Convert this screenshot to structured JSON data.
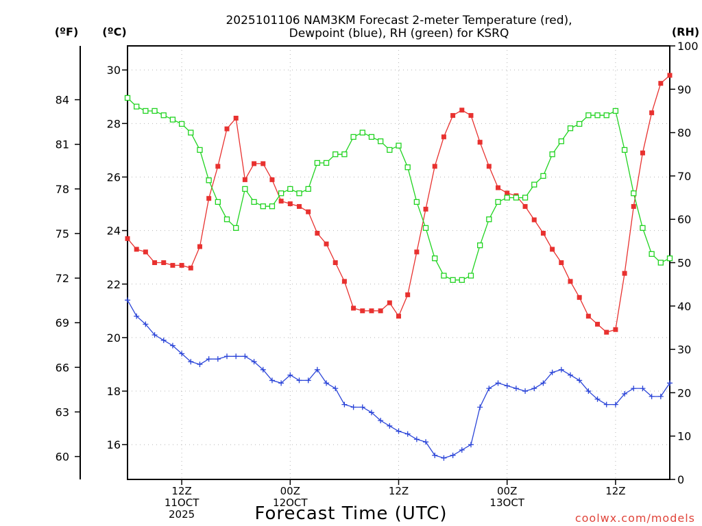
{
  "chart_data": {
    "type": "line",
    "title_line1": "2025101106 NAM3KM Forecast 2-meter Temperature (red),",
    "title_line2": "Dewpoint (blue), RH (green) for KSRQ",
    "unit_f": "(ºF)",
    "unit_c": "(ºC)",
    "unit_rh": "(RH)",
    "xlabel": "Forecast Time (UTC)",
    "credit": "coolwx.com/models",
    "x_range_hours": [
      0,
      60
    ],
    "y_left_c": {
      "range": [
        14.7,
        30.9
      ],
      "ticks": [
        16,
        18,
        20,
        22,
        24,
        26,
        28,
        30
      ]
    },
    "y_left_f": {
      "ticks": [
        60,
        63,
        66,
        69,
        72,
        75,
        78,
        81,
        84
      ]
    },
    "y_right_rh": {
      "range": [
        0,
        100
      ],
      "ticks": [
        0,
        10,
        20,
        30,
        40,
        50,
        60,
        70,
        80,
        90,
        100
      ]
    },
    "x_ticks": [
      {
        "hour": 6,
        "lines": [
          "12Z",
          "11OCT",
          "2025"
        ]
      },
      {
        "hour": 18,
        "lines": [
          "00Z",
          "12OCT"
        ]
      },
      {
        "hour": 30,
        "lines": [
          "12Z"
        ]
      },
      {
        "hour": 42,
        "lines": [
          "00Z",
          "13OCT"
        ]
      },
      {
        "hour": 54,
        "lines": [
          "12Z"
        ]
      }
    ],
    "series": [
      {
        "name": "Temperature (°C)",
        "color": "#e8312f",
        "marker": "filled-square",
        "axis": "celsius",
        "values": [
          23.7,
          23.3,
          23.2,
          22.8,
          22.8,
          22.7,
          22.7,
          22.6,
          23.4,
          25.2,
          26.4,
          27.8,
          28.2,
          25.9,
          26.5,
          26.5,
          25.9,
          25.1,
          25.0,
          24.9,
          24.7,
          23.9,
          23.5,
          22.8,
          22.1,
          21.1,
          21.0,
          21.0,
          21.0,
          21.3,
          20.8,
          21.6,
          23.2,
          24.8,
          26.4,
          27.5,
          28.3,
          28.5,
          28.3,
          27.3,
          26.4,
          25.6,
          25.4,
          25.3,
          24.9,
          24.4,
          23.9,
          23.3,
          22.8,
          22.1,
          21.5,
          20.8,
          20.5,
          20.2,
          20.3,
          22.4,
          24.9,
          26.9,
          28.4,
          29.5,
          29.8
        ]
      },
      {
        "name": "Dewpoint (°C)",
        "color": "#2a44d8",
        "marker": "plus",
        "axis": "celsius",
        "values": [
          21.4,
          20.8,
          20.5,
          20.1,
          19.9,
          19.7,
          19.4,
          19.1,
          19.0,
          19.2,
          19.2,
          19.3,
          19.3,
          19.3,
          19.1,
          18.8,
          18.4,
          18.3,
          18.6,
          18.4,
          18.4,
          18.8,
          18.3,
          18.1,
          17.5,
          17.4,
          17.4,
          17.2,
          16.9,
          16.7,
          16.5,
          16.4,
          16.2,
          16.1,
          15.6,
          15.5,
          15.6,
          15.8,
          16.0,
          17.4,
          18.1,
          18.3,
          18.2,
          18.1,
          18.0,
          18.1,
          18.3,
          18.7,
          18.8,
          18.6,
          18.4,
          18.0,
          17.7,
          17.5,
          17.5,
          17.9,
          18.1,
          18.1,
          17.8,
          17.8,
          18.3
        ]
      },
      {
        "name": "Relative Humidity (%)",
        "color": "#1fd31f",
        "marker": "open-square",
        "axis": "rh",
        "values": [
          88,
          86,
          85,
          85,
          84,
          83,
          82,
          80,
          76,
          69,
          64,
          60,
          58,
          67,
          64,
          63,
          63,
          66,
          67,
          66,
          67,
          73,
          73,
          75,
          75,
          79,
          80,
          79,
          78,
          76,
          77,
          72,
          64,
          58,
          51,
          47,
          46,
          46,
          47,
          54,
          60,
          64,
          65,
          65,
          65,
          68,
          70,
          75,
          78,
          81,
          82,
          84,
          84,
          84,
          85,
          76,
          66,
          58,
          52,
          50,
          51
        ]
      }
    ]
  }
}
